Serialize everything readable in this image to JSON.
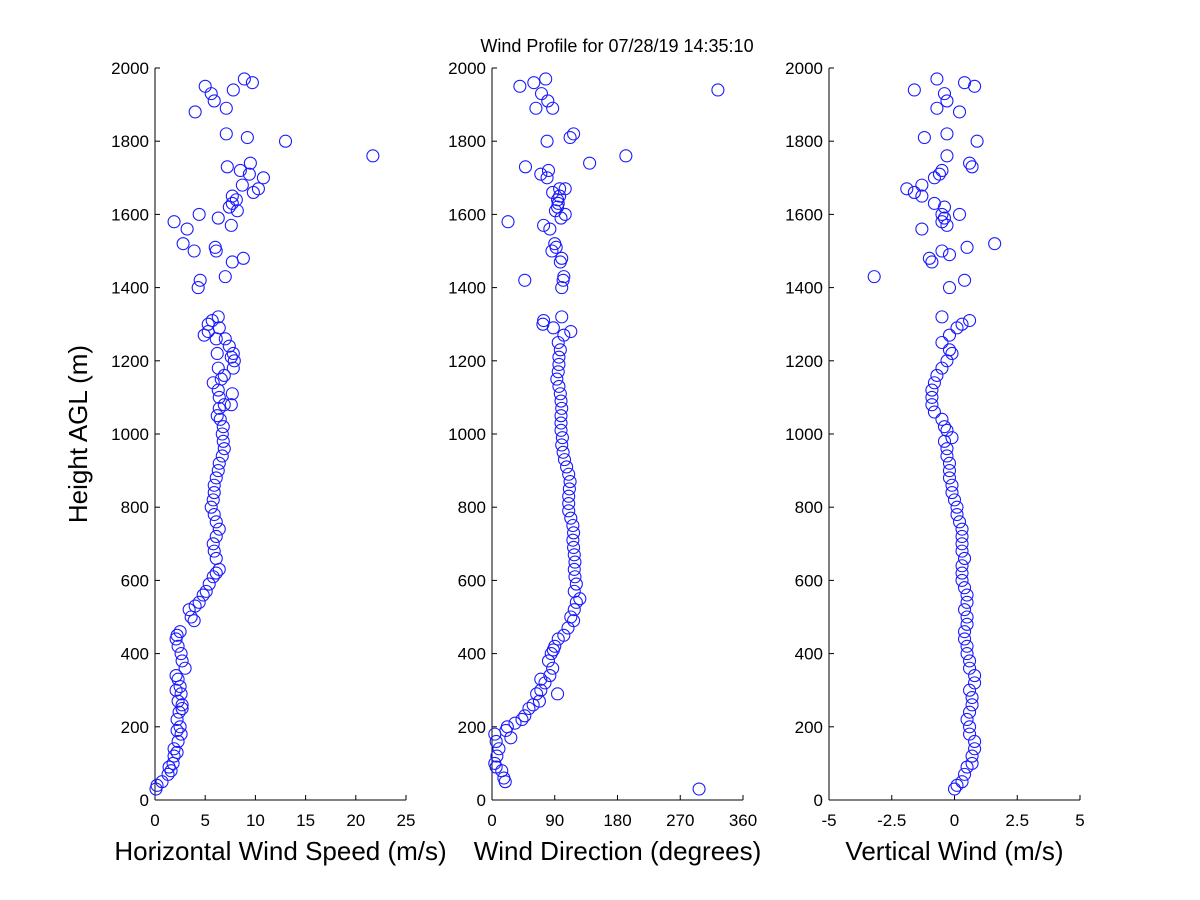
{
  "figure": {
    "title": "Wind Profile for  07/28/19 14:35:10"
  },
  "colors": {
    "marker": "#1a1aff",
    "axis": "#000000",
    "background": "#ffffff"
  },
  "chart_data": [
    {
      "type": "scatter",
      "xlabel": "Horizontal Wind Speed (m/s)",
      "ylabel": "Height AGL (m)",
      "xlim": [
        0,
        25
      ],
      "ylim": [
        0,
        2000
      ],
      "xticks": [
        "0",
        "5",
        "10",
        "15",
        "20",
        "25"
      ],
      "yticks": [
        "0",
        "200",
        "400",
        "600",
        "800",
        "1000",
        "1200",
        "1400",
        "1600",
        "1800",
        "2000"
      ],
      "grid": false,
      "points": [
        [
          0.1,
          30
        ],
        [
          0.2,
          40
        ],
        [
          0.7,
          50
        ],
        [
          1.3,
          70
        ],
        [
          1.6,
          80
        ],
        [
          1.4,
          90
        ],
        [
          1.8,
          100
        ],
        [
          1.9,
          120
        ],
        [
          2.2,
          130
        ],
        [
          1.9,
          140
        ],
        [
          2.3,
          160
        ],
        [
          2.6,
          180
        ],
        [
          2.2,
          190
        ],
        [
          2.5,
          200
        ],
        [
          2.2,
          220
        ],
        [
          2.4,
          240
        ],
        [
          2.7,
          250
        ],
        [
          2.7,
          260
        ],
        [
          2.3,
          270
        ],
        [
          2.6,
          290
        ],
        [
          2.1,
          300
        ],
        [
          2.5,
          310
        ],
        [
          2.3,
          330
        ],
        [
          2.1,
          340
        ],
        [
          3.0,
          360
        ],
        [
          2.7,
          380
        ],
        [
          2.6,
          400
        ],
        [
          2.3,
          420
        ],
        [
          2.1,
          440
        ],
        [
          2.2,
          450
        ],
        [
          2.5,
          460
        ],
        [
          3.9,
          490
        ],
        [
          3.6,
          500
        ],
        [
          3.4,
          520
        ],
        [
          4.0,
          530
        ],
        [
          4.4,
          540
        ],
        [
          4.8,
          560
        ],
        [
          5.1,
          570
        ],
        [
          5.4,
          590
        ],
        [
          5.8,
          610
        ],
        [
          6.1,
          620
        ],
        [
          6.4,
          630
        ],
        [
          6.1,
          660
        ],
        [
          5.9,
          680
        ],
        [
          5.8,
          700
        ],
        [
          6.1,
          720
        ],
        [
          6.4,
          740
        ],
        [
          6.1,
          760
        ],
        [
          5.9,
          780
        ],
        [
          5.6,
          800
        ],
        [
          5.8,
          820
        ],
        [
          5.9,
          840
        ],
        [
          5.9,
          860
        ],
        [
          6.1,
          880
        ],
        [
          6.3,
          900
        ],
        [
          6.4,
          920
        ],
        [
          6.7,
          940
        ],
        [
          6.9,
          960
        ],
        [
          6.8,
          980
        ],
        [
          6.7,
          1000
        ],
        [
          6.8,
          1020
        ],
        [
          6.5,
          1040
        ],
        [
          6.2,
          1050
        ],
        [
          6.4,
          1070
        ],
        [
          6.9,
          1080
        ],
        [
          7.6,
          1080
        ],
        [
          6.4,
          1100
        ],
        [
          7.7,
          1110
        ],
        [
          6.3,
          1120
        ],
        [
          5.8,
          1140
        ],
        [
          6.6,
          1150
        ],
        [
          6.9,
          1160
        ],
        [
          6.3,
          1180
        ],
        [
          7.8,
          1180
        ],
        [
          7.9,
          1200
        ],
        [
          7.6,
          1210
        ],
        [
          6.2,
          1220
        ],
        [
          7.8,
          1220
        ],
        [
          7.4,
          1240
        ],
        [
          6.1,
          1260
        ],
        [
          7.0,
          1260
        ],
        [
          4.9,
          1270
        ],
        [
          5.3,
          1280
        ],
        [
          6.4,
          1290
        ],
        [
          5.3,
          1300
        ],
        [
          5.7,
          1310
        ],
        [
          6.3,
          1320
        ],
        [
          4.3,
          1400
        ],
        [
          4.5,
          1420
        ],
        [
          7.0,
          1430
        ],
        [
          7.7,
          1470
        ],
        [
          8.8,
          1480
        ],
        [
          3.9,
          1500
        ],
        [
          6.1,
          1500
        ],
        [
          6.0,
          1510
        ],
        [
          2.8,
          1520
        ],
        [
          3.2,
          1560
        ],
        [
          1.9,
          1580
        ],
        [
          7.6,
          1570
        ],
        [
          6.3,
          1590
        ],
        [
          4.4,
          1600
        ],
        [
          8.2,
          1610
        ],
        [
          7.4,
          1620
        ],
        [
          7.7,
          1630
        ],
        [
          8.1,
          1640
        ],
        [
          7.7,
          1650
        ],
        [
          9.8,
          1660
        ],
        [
          10.3,
          1670
        ],
        [
          8.7,
          1680
        ],
        [
          10.8,
          1700
        ],
        [
          9.4,
          1710
        ],
        [
          8.5,
          1720
        ],
        [
          7.2,
          1730
        ],
        [
          9.5,
          1740
        ],
        [
          21.7,
          1760
        ],
        [
          13.0,
          1800
        ],
        [
          9.2,
          1810
        ],
        [
          7.1,
          1820
        ],
        [
          7.1,
          1890
        ],
        [
          4.0,
          1880
        ],
        [
          5.9,
          1910
        ],
        [
          5.6,
          1930
        ],
        [
          7.8,
          1940
        ],
        [
          5.0,
          1950
        ],
        [
          9.7,
          1960
        ],
        [
          8.9,
          1970
        ]
      ]
    },
    {
      "type": "scatter",
      "xlabel": "Wind Direction (degrees)",
      "ylabel": "",
      "xlim": [
        0,
        360
      ],
      "ylim": [
        0,
        2000
      ],
      "xticks": [
        "0",
        "90",
        "180",
        "270",
        "360"
      ],
      "yticks": [
        "0",
        "200",
        "400",
        "600",
        "800",
        "1000",
        "1200",
        "1400",
        "1600",
        "1800",
        "2000"
      ],
      "grid": false,
      "points": [
        [
          297,
          30
        ],
        [
          19,
          50
        ],
        [
          17,
          60
        ],
        [
          14,
          80
        ],
        [
          6,
          90
        ],
        [
          4,
          100
        ],
        [
          7,
          120
        ],
        [
          10,
          140
        ],
        [
          6,
          160
        ],
        [
          27,
          170
        ],
        [
          4,
          180
        ],
        [
          20,
          190
        ],
        [
          22,
          200
        ],
        [
          43,
          220
        ],
        [
          33,
          210
        ],
        [
          47,
          230
        ],
        [
          53,
          250
        ],
        [
          59,
          260
        ],
        [
          68,
          270
        ],
        [
          64,
          290
        ],
        [
          94,
          290
        ],
        [
          70,
          300
        ],
        [
          76,
          320
        ],
        [
          70,
          330
        ],
        [
          83,
          340
        ],
        [
          87,
          360
        ],
        [
          81,
          380
        ],
        [
          85,
          400
        ],
        [
          88,
          410
        ],
        [
          90,
          420
        ],
        [
          95,
          440
        ],
        [
          103,
          450
        ],
        [
          109,
          470
        ],
        [
          117,
          490
        ],
        [
          113,
          500
        ],
        [
          118,
          520
        ],
        [
          121,
          540
        ],
        [
          126,
          550
        ],
        [
          118,
          570
        ],
        [
          121,
          590
        ],
        [
          119,
          610
        ],
        [
          118,
          630
        ],
        [
          119,
          650
        ],
        [
          118,
          670
        ],
        [
          117,
          690
        ],
        [
          116,
          710
        ],
        [
          117,
          730
        ],
        [
          116,
          750
        ],
        [
          113,
          770
        ],
        [
          110,
          790
        ],
        [
          110,
          810
        ],
        [
          110,
          830
        ],
        [
          111,
          850
        ],
        [
          112,
          870
        ],
        [
          110,
          890
        ],
        [
          107,
          910
        ],
        [
          104,
          930
        ],
        [
          102,
          950
        ],
        [
          100,
          970
        ],
        [
          101,
          990
        ],
        [
          99,
          1010
        ],
        [
          99,
          1030
        ],
        [
          99,
          1050
        ],
        [
          100,
          1070
        ],
        [
          99,
          1090
        ],
        [
          98,
          1110
        ],
        [
          96,
          1130
        ],
        [
          93,
          1150
        ],
        [
          95,
          1170
        ],
        [
          96,
          1190
        ],
        [
          96,
          1210
        ],
        [
          98,
          1230
        ],
        [
          95,
          1250
        ],
        [
          103,
          1270
        ],
        [
          113,
          1280
        ],
        [
          88,
          1290
        ],
        [
          73,
          1300
        ],
        [
          74,
          1310
        ],
        [
          100,
          1320
        ],
        [
          100,
          1400
        ],
        [
          102,
          1420
        ],
        [
          103,
          1430
        ],
        [
          47,
          1420
        ],
        [
          98,
          1470
        ],
        [
          100,
          1480
        ],
        [
          86,
          1500
        ],
        [
          92,
          1510
        ],
        [
          90,
          1520
        ],
        [
          23,
          1580
        ],
        [
          83,
          1560
        ],
        [
          74,
          1570
        ],
        [
          99,
          1590
        ],
        [
          105,
          1600
        ],
        [
          91,
          1610
        ],
        [
          94,
          1620
        ],
        [
          95,
          1630
        ],
        [
          94,
          1640
        ],
        [
          97,
          1650
        ],
        [
          87,
          1660
        ],
        [
          97,
          1670
        ],
        [
          105,
          1670
        ],
        [
          70,
          1710
        ],
        [
          79,
          1700
        ],
        [
          48,
          1730
        ],
        [
          81,
          1720
        ],
        [
          140,
          1740
        ],
        [
          192,
          1760
        ],
        [
          79,
          1800
        ],
        [
          112,
          1810
        ],
        [
          117,
          1820
        ],
        [
          324,
          1940
        ],
        [
          63,
          1890
        ],
        [
          87,
          1890
        ],
        [
          80,
          1910
        ],
        [
          71,
          1930
        ],
        [
          40,
          1950
        ],
        [
          60,
          1960
        ],
        [
          77,
          1970
        ]
      ]
    },
    {
      "type": "scatter",
      "xlabel": "Vertical Wind (m/s)",
      "ylabel": "",
      "xlim": [
        -5,
        5
      ],
      "ylim": [
        0,
        2000
      ],
      "xticks": [
        "-5",
        "-2.5",
        "0",
        "2.5",
        "5"
      ],
      "yticks": [
        "0",
        "200",
        "400",
        "600",
        "800",
        "1000",
        "1200",
        "1400",
        "1600",
        "1800",
        "2000"
      ],
      "grid": false,
      "points": [
        [
          0.0,
          30
        ],
        [
          0.1,
          40
        ],
        [
          0.3,
          50
        ],
        [
          0.4,
          70
        ],
        [
          0.5,
          90
        ],
        [
          0.7,
          100
        ],
        [
          0.7,
          120
        ],
        [
          0.8,
          140
        ],
        [
          0.8,
          160
        ],
        [
          0.6,
          180
        ],
        [
          0.6,
          200
        ],
        [
          0.5,
          220
        ],
        [
          0.6,
          240
        ],
        [
          0.7,
          260
        ],
        [
          0.7,
          280
        ],
        [
          0.6,
          300
        ],
        [
          0.8,
          320
        ],
        [
          0.8,
          340
        ],
        [
          0.6,
          360
        ],
        [
          0.6,
          380
        ],
        [
          0.5,
          400
        ],
        [
          0.5,
          420
        ],
        [
          0.4,
          440
        ],
        [
          0.4,
          460
        ],
        [
          0.5,
          480
        ],
        [
          0.5,
          500
        ],
        [
          0.4,
          520
        ],
        [
          0.5,
          540
        ],
        [
          0.5,
          560
        ],
        [
          0.4,
          580
        ],
        [
          0.3,
          600
        ],
        [
          0.3,
          620
        ],
        [
          0.3,
          640
        ],
        [
          0.4,
          660
        ],
        [
          0.3,
          680
        ],
        [
          0.3,
          700
        ],
        [
          0.3,
          720
        ],
        [
          0.3,
          740
        ],
        [
          0.2,
          760
        ],
        [
          0.1,
          780
        ],
        [
          0.1,
          800
        ],
        [
          0.0,
          820
        ],
        [
          -0.1,
          840
        ],
        [
          -0.1,
          860
        ],
        [
          -0.2,
          880
        ],
        [
          -0.2,
          900
        ],
        [
          -0.2,
          920
        ],
        [
          -0.3,
          940
        ],
        [
          -0.3,
          960
        ],
        [
          -0.4,
          980
        ],
        [
          -0.1,
          990
        ],
        [
          -0.3,
          1010
        ],
        [
          -0.4,
          1020
        ],
        [
          -0.5,
          1040
        ],
        [
          -0.8,
          1060
        ],
        [
          -0.9,
          1080
        ],
        [
          -0.9,
          1100
        ],
        [
          -0.9,
          1120
        ],
        [
          -0.8,
          1140
        ],
        [
          -0.7,
          1160
        ],
        [
          -0.5,
          1180
        ],
        [
          -0.3,
          1200
        ],
        [
          -0.1,
          1220
        ],
        [
          -0.2,
          1230
        ],
        [
          -0.5,
          1250
        ],
        [
          -0.2,
          1270
        ],
        [
          0.1,
          1290
        ],
        [
          0.3,
          1300
        ],
        [
          0.6,
          1310
        ],
        [
          -0.5,
          1320
        ],
        [
          -3.2,
          1430
        ],
        [
          0.4,
          1420
        ],
        [
          -0.2,
          1400
        ],
        [
          -0.9,
          1470
        ],
        [
          -1.0,
          1480
        ],
        [
          -0.2,
          1490
        ],
        [
          -0.5,
          1500
        ],
        [
          0.5,
          1510
        ],
        [
          1.6,
          1520
        ],
        [
          -1.3,
          1560
        ],
        [
          -0.5,
          1580
        ],
        [
          -0.4,
          1590
        ],
        [
          -0.5,
          1600
        ],
        [
          0.2,
          1600
        ],
        [
          -0.3,
          1570
        ],
        [
          -0.4,
          1620
        ],
        [
          -0.8,
          1630
        ],
        [
          -1.3,
          1650
        ],
        [
          -1.6,
          1660
        ],
        [
          -1.3,
          1680
        ],
        [
          -1.9,
          1670
        ],
        [
          -0.8,
          1700
        ],
        [
          -0.6,
          1710
        ],
        [
          -0.5,
          1720
        ],
        [
          0.7,
          1730
        ],
        [
          0.6,
          1740
        ],
        [
          -0.3,
          1760
        ],
        [
          0.9,
          1800
        ],
        [
          -1.2,
          1810
        ],
        [
          -0.3,
          1820
        ],
        [
          -0.7,
          1890
        ],
        [
          0.2,
          1880
        ],
        [
          -1.6,
          1940
        ],
        [
          -0.3,
          1910
        ],
        [
          -0.4,
          1930
        ],
        [
          0.4,
          1960
        ],
        [
          -0.7,
          1970
        ],
        [
          0.8,
          1950
        ]
      ]
    }
  ]
}
